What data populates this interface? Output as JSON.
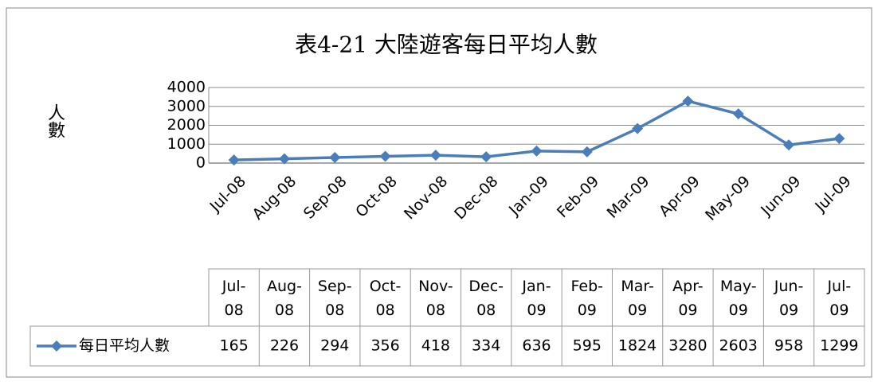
{
  "chart_data": {
    "type": "line",
    "title": "表4-21 大陸遊客每日平均人數",
    "y_label": "人數",
    "categories": [
      "Jul-08",
      "Aug-08",
      "Sep-08",
      "Oct-08",
      "Nov-08",
      "Dec-08",
      "Jan-09",
      "Feb-09",
      "Mar-09",
      "Apr-09",
      "May-09",
      "Jun-09",
      "Jul-09"
    ],
    "series": [
      {
        "name": "每日平均人數",
        "color": "#4a7ebb",
        "values": [
          165,
          226,
          294,
          356,
          418,
          334,
          636,
          595,
          1824,
          3280,
          2603,
          958,
          1299
        ]
      }
    ],
    "ylim": [
      0,
      4000
    ],
    "yticks": [
      0,
      1000,
      2000,
      3000,
      4000
    ],
    "grid": true,
    "data_table": true
  }
}
